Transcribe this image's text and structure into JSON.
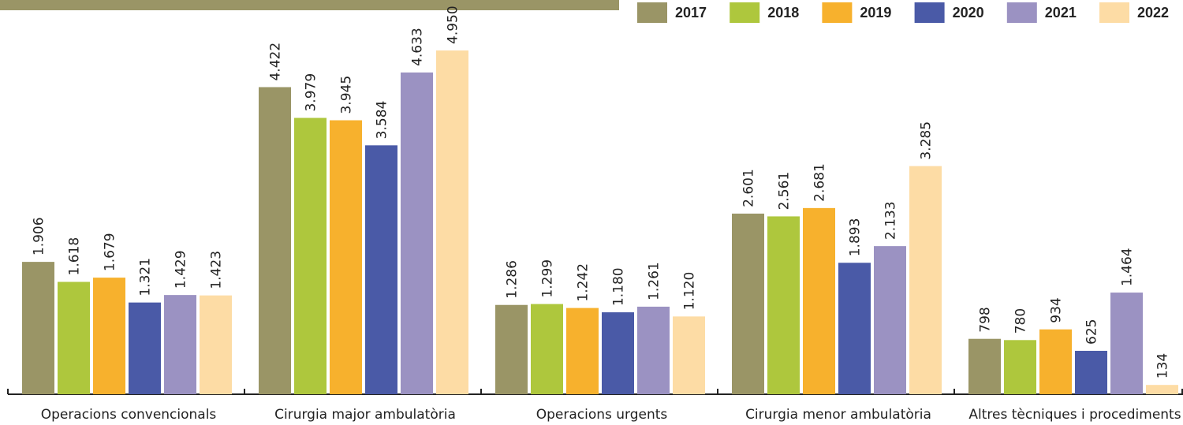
{
  "chart_data": {
    "type": "bar",
    "categories": [
      "Operacions convencionals",
      "Cirurgia major ambulatòria",
      "Operacions urgents",
      "Cirurgia menor ambulatòria",
      "Altres tècniques i procediments"
    ],
    "series": [
      {
        "name": "2017",
        "color": "#9a9566",
        "values": [
          1906,
          4422,
          1286,
          2601,
          798
        ],
        "value_labels": [
          "1.906",
          "4.422",
          "1.286",
          "2.601",
          "798"
        ]
      },
      {
        "name": "2018",
        "color": "#aec73d",
        "values": [
          1618,
          3979,
          1299,
          2561,
          780
        ],
        "value_labels": [
          "1.618",
          "3.979",
          "1.299",
          "2.561",
          "780"
        ]
      },
      {
        "name": "2019",
        "color": "#f7b12d",
        "values": [
          1679,
          3945,
          1242,
          2681,
          934
        ],
        "value_labels": [
          "1.679",
          "3.945",
          "1.242",
          "2.681",
          "934"
        ]
      },
      {
        "name": "2020",
        "color": "#4a5aa7",
        "values": [
          1321,
          3584,
          1180,
          1893,
          625
        ],
        "value_labels": [
          "1.321",
          "3.584",
          "1.180",
          "1.893",
          "625"
        ]
      },
      {
        "name": "2021",
        "color": "#9b92c2",
        "values": [
          1429,
          4633,
          1261,
          2133,
          1464
        ],
        "value_labels": [
          "1.429",
          "4.633",
          "1.261",
          "2.133",
          "1.464"
        ]
      },
      {
        "name": "2022",
        "color": "#fddca5",
        "values": [
          1423,
          4950,
          1120,
          3285,
          134
        ],
        "value_labels": [
          "1.423",
          "4.950",
          "1.120",
          "3.285",
          "134"
        ]
      }
    ]
  }
}
